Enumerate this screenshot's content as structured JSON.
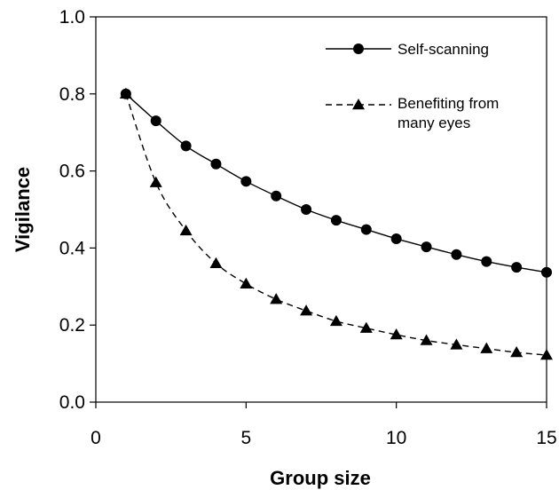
{
  "chart_data": {
    "type": "line",
    "title": "",
    "xlabel": "Group size",
    "ylabel": "Vigilance",
    "xlim": [
      0,
      15
    ],
    "ylim": [
      0.0,
      1.0
    ],
    "x_ticks": [
      "0",
      "5",
      "10",
      "15"
    ],
    "y_ticks": [
      "0.0",
      "0.2",
      "0.4",
      "0.6",
      "0.8",
      "1.0"
    ],
    "grid": false,
    "legend_position": "top-right",
    "x": [
      1,
      2,
      3,
      4,
      5,
      6,
      7,
      8,
      9,
      10,
      11,
      12,
      13,
      14,
      15
    ],
    "series": [
      {
        "name": "Self-scanning",
        "marker": "circle",
        "line_style": "solid",
        "values": [
          0.8,
          0.73,
          0.665,
          0.618,
          0.573,
          0.535,
          0.5,
          0.472,
          0.448,
          0.424,
          0.403,
          0.383,
          0.365,
          0.35,
          0.337
        ]
      },
      {
        "name": "Benefiting from many eyes",
        "legend_lines": [
          "Benefiting from",
          "many eyes"
        ],
        "marker": "triangle",
        "line_style": "dashed",
        "values": [
          0.8,
          0.57,
          0.445,
          0.36,
          0.307,
          0.267,
          0.237,
          0.21,
          0.192,
          0.175,
          0.16,
          0.149,
          0.139,
          0.129,
          0.122
        ]
      }
    ]
  }
}
